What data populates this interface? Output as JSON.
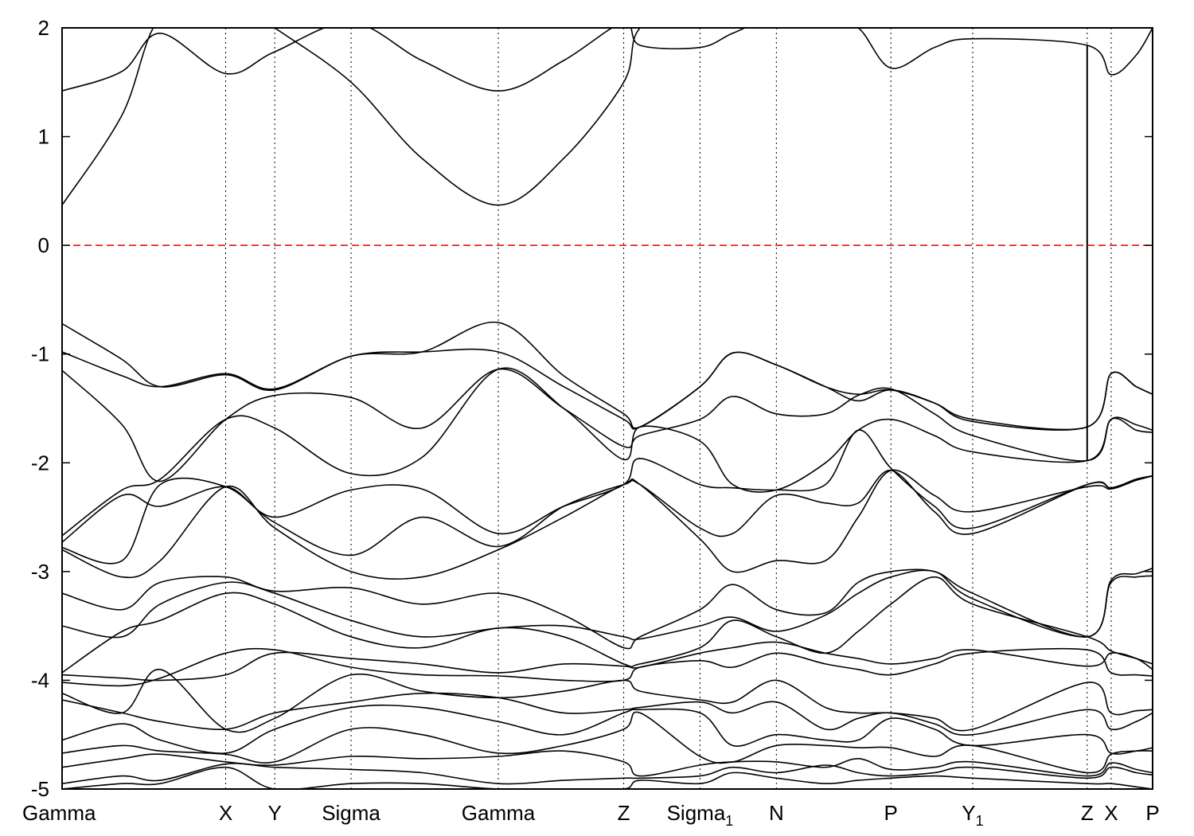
{
  "chart_data": {
    "type": "line",
    "title": "",
    "xlabel": "",
    "ylabel": "",
    "ylim": [
      -5,
      2
    ],
    "y_ticks": [
      "2",
      "1",
      "0",
      "-1",
      "-2",
      "-3",
      "-4",
      "-5"
    ],
    "y_tick_values": [
      2,
      1,
      0,
      -1,
      -2,
      -3,
      -4,
      -5
    ],
    "k_path_labels": [
      {
        "main": "Gamma",
        "sub": "",
        "k": 0.0
      },
      {
        "main": "X",
        "sub": "",
        "k": 1.5
      },
      {
        "main": "Y",
        "sub": "",
        "k": 1.95
      },
      {
        "main": "Sigma",
        "sub": "",
        "k": 2.65
      },
      {
        "main": "Gamma",
        "sub": "",
        "k": 4.0
      },
      {
        "main": "Z",
        "sub": "",
        "k": 5.15
      },
      {
        "main": "Sigma",
        "sub": "1",
        "k": 5.85
      },
      {
        "main": "N",
        "sub": "",
        "k": 6.55
      },
      {
        "main": "P",
        "sub": "",
        "k": 7.6
      },
      {
        "main": "Y",
        "sub": "1",
        "k": 8.35
      },
      {
        "main": "Z",
        "sub": "",
        "k": 9.4
      },
      {
        "main": "X",
        "sub": "",
        "k": 9.62
      },
      {
        "main": "P",
        "sub": "",
        "k": 10.0
      }
    ],
    "xlim": [
      0,
      10.0
    ],
    "fermi_level": {
      "value": 0,
      "color": "#dd0000",
      "style": "dashed"
    },
    "band_color": "#000000",
    "grid": "vertical dotted lines at high-symmetry points",
    "series": [
      {
        "values": [
          0.37,
          1.2,
          2.1,
          2.3,
          2.0,
          1.5,
          0.8,
          0.37,
          0.8,
          1.5,
          2.0,
          2.3,
          2.5,
          2.4,
          2.3,
          2.5,
          2.4,
          2.2,
          2.1,
          2.2,
          2.1,
          2.3,
          2.4
        ]
      },
      {
        "values": [
          1.42,
          1.6,
          1.95,
          1.58,
          1.78,
          2.05,
          1.7,
          1.42,
          1.7,
          2.05,
          1.84,
          1.82,
          1.95,
          2.1,
          2.05,
          2.0,
          1.63,
          1.82,
          1.9,
          1.84,
          1.57,
          1.75,
          2.0
        ]
      },
      {
        "values": [
          -0.72,
          -1.05,
          -1.3,
          -1.19,
          -1.33,
          -1.02,
          -0.98,
          -0.71,
          -1.2,
          -1.55,
          -1.67,
          -1.3,
          -0.99,
          -1.1,
          -1.3,
          -1.37,
          -1.33,
          -1.45,
          -1.6,
          -1.67,
          -1.18,
          -1.3,
          -1.37
        ]
      },
      {
        "values": [
          -0.98,
          -1.2,
          -1.3,
          -1.18,
          -1.32,
          -1.02,
          -0.98,
          -0.98,
          -1.3,
          -1.6,
          -1.67,
          -1.3,
          -0.99,
          -1.1,
          -1.3,
          -1.43,
          -1.33,
          -1.45,
          -1.62,
          -1.67,
          -1.18,
          -1.3,
          -1.37
        ]
      },
      {
        "values": [
          -1.15,
          -1.65,
          -2.17,
          -1.6,
          -1.38,
          -1.4,
          -1.68,
          -1.14,
          -1.5,
          -1.85,
          -1.75,
          -1.6,
          -1.39,
          -1.55,
          -1.55,
          -1.38,
          -1.32,
          -1.55,
          -1.75,
          -1.98,
          -1.6,
          -1.65,
          -1.7
        ]
      },
      {
        "values": [
          -2.67,
          -2.25,
          -2.15,
          -1.6,
          -1.68,
          -2.1,
          -1.95,
          -1.14,
          -1.5,
          -1.97,
          -1.67,
          -1.8,
          -2.2,
          -2.25,
          -2.0,
          -1.7,
          -1.6,
          -1.75,
          -1.9,
          -1.98,
          -1.6,
          -1.7,
          -1.72
        ]
      },
      {
        "values": [
          -2.73,
          -2.3,
          -2.4,
          -2.22,
          -2.5,
          -2.25,
          -2.24,
          -2.65,
          -2.4,
          -2.2,
          -1.96,
          -2.2,
          -2.23,
          -2.25,
          -2.2,
          -1.7,
          -2.05,
          -2.4,
          -2.6,
          -2.2,
          -2.23,
          -2.15,
          -2.12
        ]
      },
      {
        "values": [
          -2.78,
          -2.9,
          -2.2,
          -2.22,
          -2.55,
          -2.85,
          -2.5,
          -2.77,
          -2.4,
          -2.2,
          -2.2,
          -2.6,
          -2.65,
          -2.3,
          -2.37,
          -2.37,
          -2.07,
          -2.45,
          -2.65,
          -2.2,
          -2.23,
          -2.16,
          -2.12
        ]
      },
      {
        "values": [
          -2.8,
          -3.05,
          -2.9,
          -2.22,
          -2.6,
          -3.0,
          -3.05,
          -2.8,
          -2.5,
          -2.2,
          -2.2,
          -2.7,
          -3.0,
          -2.9,
          -2.9,
          -2.5,
          -2.07,
          -2.3,
          -2.45,
          -2.22,
          -2.24,
          -2.16,
          -2.12
        ]
      },
      {
        "values": [
          -3.2,
          -3.35,
          -3.1,
          -3.05,
          -3.18,
          -3.15,
          -3.3,
          -3.2,
          -3.4,
          -3.7,
          -3.6,
          -3.35,
          -3.12,
          -3.35,
          -3.38,
          -3.1,
          -3.0,
          -3.0,
          -3.2,
          -3.6,
          -3.08,
          -3.02,
          -2.97
        ]
      },
      {
        "values": [
          -3.5,
          -3.6,
          -3.3,
          -3.1,
          -3.2,
          -3.45,
          -3.6,
          -3.52,
          -3.5,
          -3.6,
          -3.62,
          -3.5,
          -3.42,
          -3.55,
          -3.4,
          -3.2,
          -3.05,
          -3.0,
          -3.25,
          -3.6,
          -3.1,
          -3.05,
          -3.04
        ]
      },
      {
        "values": [
          -3.93,
          -3.55,
          -3.45,
          -3.2,
          -3.3,
          -3.6,
          -3.7,
          -3.52,
          -3.6,
          -3.85,
          -3.85,
          -3.7,
          -3.45,
          -3.6,
          -3.75,
          -3.55,
          -3.3,
          -3.05,
          -3.3,
          -3.6,
          -3.73,
          -3.8,
          -3.85
        ]
      },
      {
        "values": [
          -3.95,
          -3.98,
          -4.0,
          -3.95,
          -3.75,
          -3.8,
          -3.85,
          -3.93,
          -3.85,
          -3.87,
          -3.88,
          -3.75,
          -3.7,
          -3.65,
          -3.75,
          -3.8,
          -3.85,
          -3.8,
          -3.72,
          -3.87,
          -3.75,
          -3.8,
          -3.9
        ]
      },
      {
        "values": [
          -4.02,
          -4.05,
          -3.98,
          -3.75,
          -3.72,
          -3.88,
          -3.95,
          -3.96,
          -4.0,
          -4.0,
          -3.88,
          -3.82,
          -3.88,
          -3.75,
          -3.85,
          -3.9,
          -3.95,
          -3.85,
          -3.75,
          -3.72,
          -3.93,
          -3.95,
          -3.96
        ]
      },
      {
        "values": [
          -4.12,
          -4.3,
          -3.9,
          -4.45,
          -4.35,
          -3.95,
          -4.1,
          -4.16,
          -4.1,
          -4.0,
          -4.1,
          -4.18,
          -4.2,
          -4.0,
          -4.25,
          -4.3,
          -4.3,
          -4.35,
          -4.45,
          -4.02,
          -4.3,
          -4.28,
          -4.27
        ]
      },
      {
        "values": [
          -4.18,
          -4.3,
          -4.38,
          -4.45,
          -4.3,
          -4.2,
          -4.12,
          -4.16,
          -4.3,
          -4.27,
          -4.25,
          -4.2,
          -4.3,
          -4.2,
          -4.45,
          -4.35,
          -4.3,
          -4.4,
          -4.5,
          -4.27,
          -4.45,
          -4.38,
          -4.3
        ]
      },
      {
        "values": [
          -4.55,
          -4.4,
          -4.55,
          -4.67,
          -4.45,
          -4.25,
          -4.25,
          -4.38,
          -4.5,
          -4.3,
          -4.27,
          -4.3,
          -4.6,
          -4.5,
          -4.55,
          -4.55,
          -4.35,
          -4.45,
          -4.6,
          -4.5,
          -4.67,
          -4.65,
          -4.62
        ]
      },
      {
        "values": [
          -4.67,
          -4.6,
          -4.65,
          -4.68,
          -4.75,
          -4.45,
          -4.5,
          -4.67,
          -4.6,
          -4.45,
          -4.3,
          -4.7,
          -4.75,
          -4.6,
          -4.6,
          -4.62,
          -4.62,
          -4.7,
          -4.6,
          -4.85,
          -4.68,
          -4.65,
          -4.65
        ]
      },
      {
        "values": [
          -4.8,
          -4.72,
          -4.68,
          -4.75,
          -4.78,
          -4.7,
          -4.72,
          -4.7,
          -4.65,
          -4.75,
          -4.88,
          -4.78,
          -4.75,
          -4.75,
          -4.8,
          -4.72,
          -4.82,
          -4.8,
          -4.75,
          -4.88,
          -4.76,
          -4.82,
          -4.85
        ]
      },
      {
        "values": [
          -4.95,
          -4.88,
          -4.92,
          -4.77,
          -4.8,
          -4.82,
          -4.85,
          -4.95,
          -4.92,
          -4.9,
          -4.9,
          -4.88,
          -4.8,
          -4.85,
          -4.78,
          -4.85,
          -4.88,
          -4.85,
          -4.8,
          -4.9,
          -4.8,
          -4.85,
          -4.87
        ]
      },
      {
        "values": [
          -5.0,
          -4.95,
          -4.95,
          -4.8,
          -5.0,
          -4.95,
          -4.95,
          -5.0,
          -5.0,
          -5.0,
          -4.92,
          -4.95,
          -4.85,
          -4.9,
          -4.95,
          -4.92,
          -4.9,
          -4.88,
          -4.9,
          -4.95,
          -4.95,
          -4.98,
          -5.0
        ]
      }
    ],
    "series_k": [
      0.0,
      0.55,
      0.9,
      1.5,
      1.95,
      2.65,
      3.3,
      4.0,
      4.6,
      5.15,
      5.3,
      5.85,
      6.15,
      6.55,
      7.0,
      7.3,
      7.6,
      8.0,
      8.35,
      9.4,
      9.62,
      9.85,
      10.0
    ]
  }
}
